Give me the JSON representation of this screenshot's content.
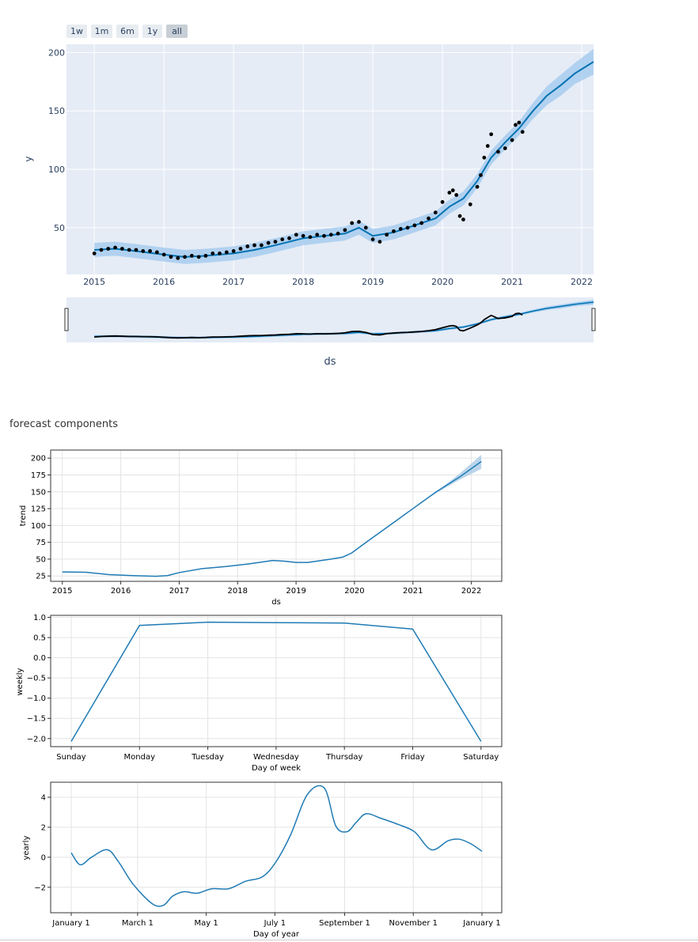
{
  "range_selector": {
    "buttons": [
      {
        "label": "1w",
        "active": false
      },
      {
        "label": "1m",
        "active": false
      },
      {
        "label": "6m",
        "active": false
      },
      {
        "label": "1y",
        "active": false
      },
      {
        "label": "all",
        "active": true
      }
    ]
  },
  "colors": {
    "plot_bg": "#e5ecf6",
    "forecast_line": "#0072b2",
    "uncertainty": "#a8cdee",
    "observed": "#000000",
    "comp_line": "#1f7bb5",
    "comp_band": "#a9cbe6"
  },
  "components_title": "forecast components",
  "chart_data": [
    {
      "id": "forecast",
      "type": "line",
      "ylabel": "y",
      "xlabel": "ds",
      "x_ticks": [
        "2015",
        "2016",
        "2017",
        "2018",
        "2019",
        "2020",
        "2021",
        "2022"
      ],
      "y_ticks": [
        "50",
        "100",
        "150",
        "200"
      ],
      "xlim": [
        2014.6,
        2022.17
      ],
      "ylim": [
        10,
        207
      ],
      "rangeslider": true,
      "series": [
        {
          "role": "forecast_yhat",
          "x": [
            2015.0,
            2015.3,
            2015.6,
            2016.0,
            2016.3,
            2016.6,
            2017.0,
            2017.3,
            2017.6,
            2018.0,
            2018.3,
            2018.6,
            2018.8,
            2019.0,
            2019.3,
            2019.6,
            2019.9,
            2020.1,
            2020.3,
            2020.5,
            2020.7,
            2020.9,
            2021.1,
            2021.3,
            2021.5,
            2021.7,
            2021.9,
            2022.17
          ],
          "y": [
            31,
            32,
            30,
            27,
            25,
            26,
            28,
            31,
            35,
            41,
            43,
            45,
            50,
            43,
            46,
            52,
            58,
            68,
            75,
            90,
            110,
            123,
            135,
            150,
            163,
            172,
            182,
            192
          ]
        },
        {
          "role": "forecast_upper",
          "x": [
            2015.0,
            2015.3,
            2015.6,
            2016.0,
            2016.3,
            2016.6,
            2017.0,
            2017.3,
            2017.6,
            2018.0,
            2018.3,
            2018.6,
            2018.8,
            2019.0,
            2019.3,
            2019.6,
            2019.9,
            2020.1,
            2020.3,
            2020.5,
            2020.7,
            2020.9,
            2021.1,
            2021.3,
            2021.5,
            2021.7,
            2021.9,
            2022.17
          ],
          "y": [
            37,
            38,
            36,
            33,
            31,
            32,
            34,
            37,
            41,
            47,
            49,
            51,
            56,
            49,
            52,
            58,
            64,
            74,
            81,
            96,
            116,
            129,
            141,
            157,
            171,
            181,
            191,
            203
          ]
        },
        {
          "role": "forecast_lower",
          "x": [
            2015.0,
            2015.3,
            2015.6,
            2016.0,
            2016.3,
            2016.6,
            2017.0,
            2017.3,
            2017.6,
            2018.0,
            2018.3,
            2018.6,
            2018.8,
            2019.0,
            2019.3,
            2019.6,
            2019.9,
            2020.1,
            2020.3,
            2020.5,
            2020.7,
            2020.9,
            2021.1,
            2021.3,
            2021.5,
            2021.7,
            2021.9,
            2022.17
          ],
          "y": [
            25,
            26,
            24,
            21,
            19,
            20,
            22,
            25,
            29,
            35,
            37,
            39,
            44,
            37,
            40,
            46,
            52,
            62,
            69,
            84,
            104,
            117,
            129,
            143,
            155,
            163,
            173,
            181
          ]
        },
        {
          "role": "observed",
          "x": [
            2015.0,
            2015.1,
            2015.2,
            2015.3,
            2015.4,
            2015.5,
            2015.6,
            2015.7,
            2015.8,
            2015.9,
            2016.0,
            2016.1,
            2016.2,
            2016.3,
            2016.4,
            2016.5,
            2016.6,
            2016.7,
            2016.8,
            2016.9,
            2017.0,
            2017.1,
            2017.2,
            2017.3,
            2017.4,
            2017.5,
            2017.6,
            2017.7,
            2017.8,
            2017.9,
            2018.0,
            2018.1,
            2018.2,
            2018.3,
            2018.4,
            2018.5,
            2018.6,
            2018.7,
            2018.8,
            2018.9,
            2019.0,
            2019.1,
            2019.2,
            2019.3,
            2019.4,
            2019.5,
            2019.6,
            2019.7,
            2019.8,
            2019.9,
            2020.0,
            2020.1,
            2020.15,
            2020.2,
            2020.25,
            2020.3,
            2020.4,
            2020.5,
            2020.55,
            2020.6,
            2020.65,
            2020.7,
            2020.8,
            2020.9,
            2021.0,
            2021.05,
            2021.1,
            2021.15
          ],
          "y": [
            28,
            31,
            32,
            33,
            32,
            31,
            31,
            30,
            30,
            29,
            27,
            25,
            24,
            25,
            26,
            25,
            26,
            28,
            28,
            29,
            30,
            32,
            34,
            35,
            35,
            37,
            38,
            40,
            41,
            44,
            43,
            42,
            44,
            43,
            44,
            45,
            48,
            54,
            55,
            50,
            40,
            38,
            44,
            47,
            49,
            50,
            52,
            54,
            58,
            63,
            72,
            80,
            82,
            78,
            60,
            57,
            70,
            85,
            95,
            110,
            120,
            130,
            115,
            118,
            125,
            138,
            140,
            132
          ]
        }
      ]
    },
    {
      "id": "trend",
      "type": "line",
      "ylabel": "trend",
      "xlabel": "ds",
      "x_ticks": [
        "2015",
        "2016",
        "2017",
        "2018",
        "2019",
        "2020",
        "2021",
        "2022"
      ],
      "y_ticks": [
        "25",
        "50",
        "75",
        "100",
        "125",
        "150",
        "175",
        "200"
      ],
      "xlim": [
        2014.8,
        2022.52
      ],
      "ylim": [
        17,
        212
      ],
      "series": [
        {
          "role": "trend",
          "x": [
            2015.0,
            2015.4,
            2015.8,
            2016.2,
            2016.6,
            2016.8,
            2017.0,
            2017.4,
            2017.8,
            2018.2,
            2018.6,
            2018.8,
            2019.0,
            2019.2,
            2019.6,
            2019.8,
            2019.95,
            2020.2,
            2020.6,
            2021.0,
            2021.4,
            2021.8,
            2022.17
          ],
          "y": [
            31,
            30.5,
            27,
            25.5,
            24.5,
            25.5,
            30,
            36,
            39,
            43,
            48,
            47,
            45,
            45,
            50,
            53,
            59,
            75,
            100,
            125,
            150,
            172,
            195
          ]
        },
        {
          "role": "trend_upper",
          "x": [
            2021.3,
            2021.8,
            2022.17
          ],
          "y": [
            143,
            177,
            205
          ]
        },
        {
          "role": "trend_lower",
          "x": [
            2021.3,
            2021.8,
            2022.17
          ],
          "y": [
            143,
            168,
            184
          ]
        }
      ]
    },
    {
      "id": "weekly",
      "type": "line",
      "ylabel": "weekly",
      "xlabel": "Day of week",
      "categories": [
        "Sunday",
        "Monday",
        "Tuesday",
        "Wednesday",
        "Thursday",
        "Friday",
        "Saturday"
      ],
      "values": [
        -2.07,
        0.8,
        0.88,
        0.87,
        0.86,
        0.71,
        -2.07
      ],
      "y_ticks": [
        "1.0",
        "0.5",
        "0.0",
        "−0.5",
        "−1.0",
        "−1.5",
        "−2.0"
      ],
      "ylim": [
        -2.2,
        1.05
      ]
    },
    {
      "id": "yearly",
      "type": "line",
      "ylabel": "yearly",
      "xlabel": "Day of year",
      "x_ticks": [
        "January 1",
        "March 1",
        "May 1",
        "July 1",
        "September 1",
        "November 1",
        "January 1"
      ],
      "y_ticks": [
        "4",
        "2",
        "0",
        "−2"
      ],
      "ylim": [
        -3.7,
        5.0
      ],
      "series": [
        {
          "role": "yearly",
          "x": [
            0,
            8,
            18,
            32,
            42,
            55,
            72,
            82,
            90,
            100,
            112,
            125,
            140,
            155,
            170,
            182,
            195,
            210,
            225,
            235,
            245,
            253,
            262,
            275,
            290,
            305,
            320,
            335,
            345,
            355,
            365
          ],
          "y": [
            0.3,
            -0.5,
            0.0,
            0.5,
            -0.3,
            -1.8,
            -3.1,
            -3.2,
            -2.6,
            -2.3,
            -2.4,
            -2.1,
            -2.1,
            -1.6,
            -1.3,
            -0.3,
            1.5,
            4.2,
            4.6,
            2.1,
            1.7,
            2.3,
            2.9,
            2.6,
            2.2,
            1.7,
            0.5,
            1.1,
            1.2,
            0.9,
            0.4
          ]
        }
      ]
    }
  ]
}
